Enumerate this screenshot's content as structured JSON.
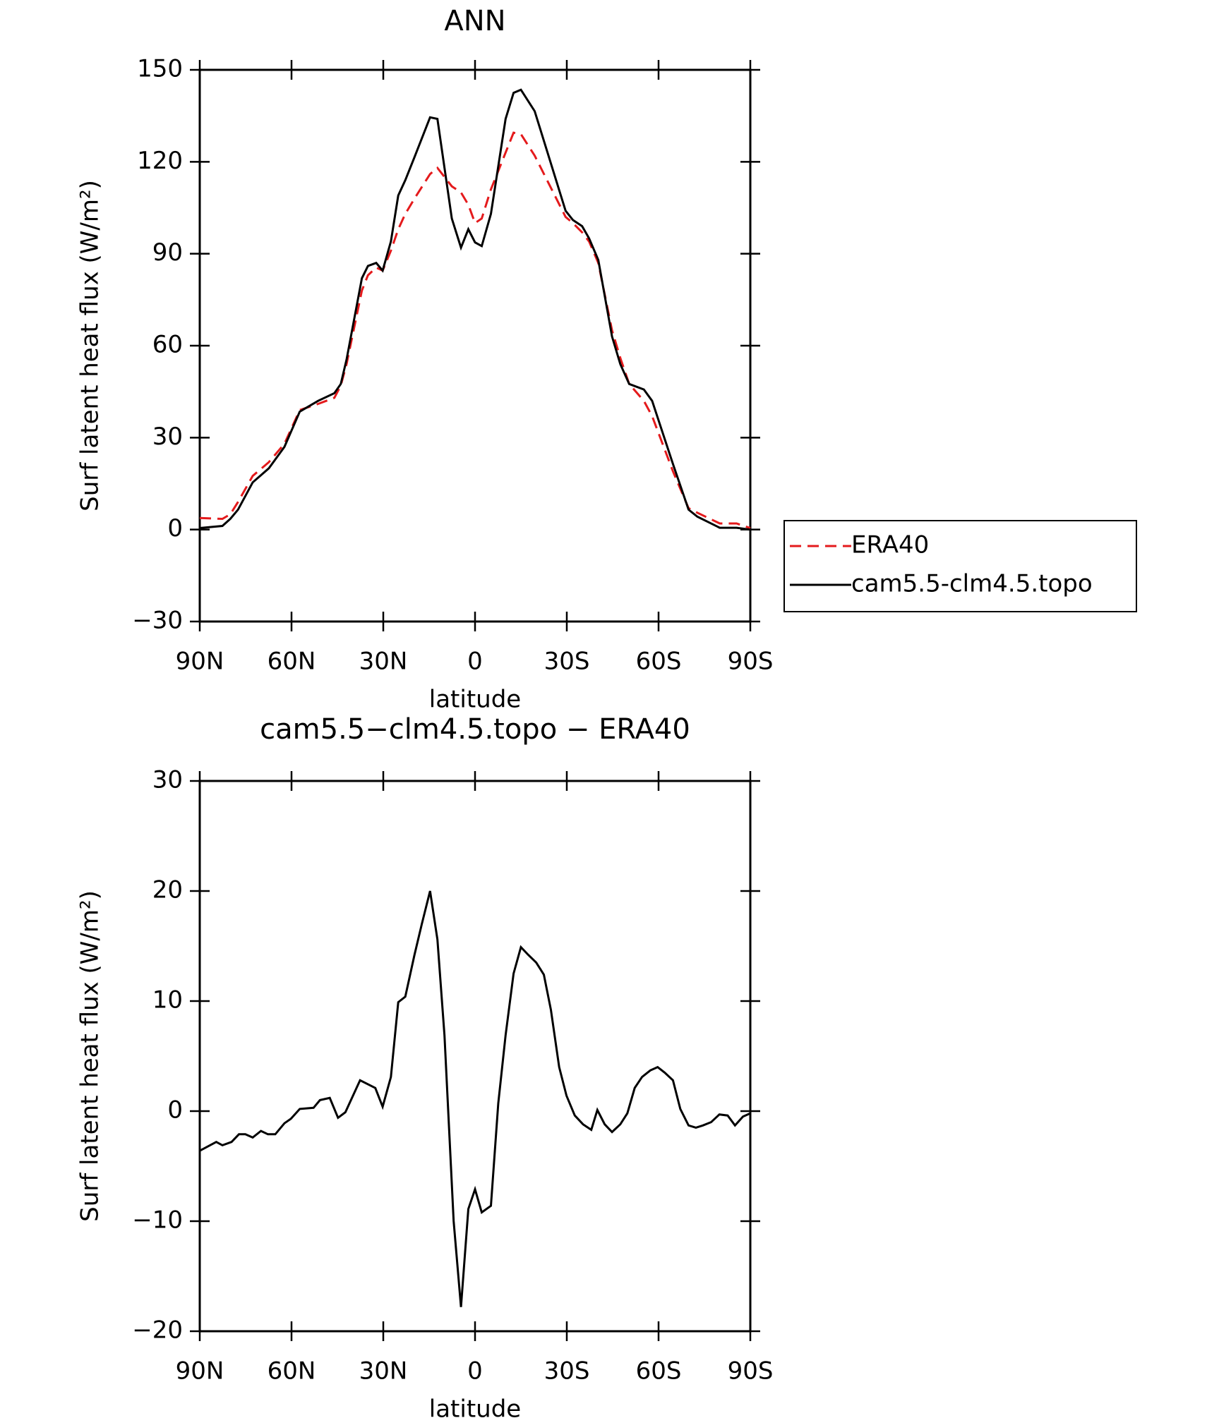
{
  "chart_data": [
    {
      "type": "line",
      "title": "ANN",
      "xlabel": "latitude",
      "ylabel": "Surf latent heat flux (W/m²)",
      "x": [
        90,
        82.6,
        80,
        77.5,
        72.7,
        67.4,
        62.3,
        57.3,
        51.3,
        46,
        43.9,
        42,
        37,
        35,
        32.3,
        30.2,
        27.5,
        25.1,
        22.8,
        19.8,
        14.7,
        12.3,
        7.6,
        4.6,
        2.2,
        0,
        -2.2,
        -5.2,
        -10,
        -12.6,
        -15,
        -19.5,
        -29.6,
        -32,
        -35,
        -37.3,
        -40.3,
        -44.8,
        -47.5,
        -50.4,
        -55.2,
        -57.9,
        -64.7,
        -69.8,
        -72.7,
        -80,
        -85.5,
        -90
      ],
      "series": [
        {
          "name": "ERA40",
          "color": "#e41a1c",
          "style": "dashed",
          "values": [
            3.8,
            3.5,
            5,
            9,
            17.5,
            22,
            28,
            39,
            41,
            43,
            47,
            54,
            78,
            83,
            85.5,
            84.5,
            91,
            98,
            103,
            108,
            116,
            118,
            112,
            110,
            106,
            100,
            101.5,
            111,
            123,
            129.5,
            129,
            122,
            102,
            100,
            97,
            94,
            87,
            65,
            56,
            47.5,
            42,
            37,
            19,
            7,
            5.5,
            2,
            2,
            0.5
          ]
        },
        {
          "name": "cam5.5-clm4.5.topo",
          "color": "#000000",
          "style": "solid",
          "values": [
            0.5,
            1.2,
            3.5,
            6.5,
            15.4,
            20,
            27,
            38.5,
            42,
            44.5,
            47.5,
            55.5,
            82,
            86,
            87,
            84.5,
            94,
            109,
            114,
            121.5,
            134.5,
            134,
            101.5,
            92,
            98,
            93.7,
            92.5,
            103,
            134,
            142.5,
            143.5,
            136.5,
            104,
            101,
            99,
            95,
            88,
            63,
            54,
            47.5,
            45.7,
            42,
            21.4,
            6.5,
            4.2,
            0.6,
            0.6,
            0
          ]
        }
      ],
      "xlim": [
        90,
        -90
      ],
      "ylim": [
        -30,
        150
      ],
      "xticks": [
        {
          "value": 90,
          "label": "90N"
        },
        {
          "value": 60,
          "label": "60N"
        },
        {
          "value": 30,
          "label": "30N"
        },
        0,
        {
          "value": -30,
          "label": "30S"
        },
        {
          "value": -60,
          "label": "60S"
        },
        {
          "value": -90,
          "label": "90S"
        }
      ],
      "yticks": [
        {
          "value": -30,
          "label": "−30"
        },
        0,
        30,
        60,
        90,
        120,
        150
      ],
      "legend": "right"
    },
    {
      "type": "line",
      "title": "cam5.5−clm4.5.topo  −  ERA40",
      "xlabel": "latitude",
      "ylabel": "Surf latent heat flux (W/m²)",
      "x": [
        90,
        84.6,
        82.6,
        79.6,
        77.2,
        75.1,
        72.7,
        70,
        67.7,
        65.3,
        62.3,
        60.2,
        57.3,
        52.8,
        50.7,
        47.5,
        44.8,
        42.4,
        37.6,
        32.6,
        30.2,
        27.5,
        25.1,
        22.8,
        19.8,
        17.4,
        14.7,
        12.3,
        10,
        7,
        4.6,
        2.2,
        0,
        -2.2,
        -5.2,
        -7.6,
        -10,
        -12.6,
        -15,
        -17.4,
        -20,
        -22.5,
        -24.8,
        -27.5,
        -29.9,
        -32.6,
        -35.3,
        -38,
        -40,
        -42.4,
        -44.8,
        -47.5,
        -49.8,
        -52.2,
        -54.6,
        -57.3,
        -59.7,
        -62,
        -64.7,
        -67.1,
        -69.8,
        -72.2,
        -74.5,
        -77.2,
        -79.9,
        -82.6,
        -85,
        -87.6,
        -90
      ],
      "series": [
        {
          "color": "#000000",
          "style": "solid",
          "values": [
            -3.6,
            -2.8,
            -3.1,
            -2.8,
            -2.1,
            -2.1,
            -2.4,
            -1.8,
            -2.1,
            -2.1,
            -1.1,
            -0.7,
            0.2,
            0.3,
            1.0,
            1.2,
            -0.6,
            -0.1,
            2.8,
            2.1,
            0.4,
            3.1,
            9.9,
            10.4,
            14.2,
            17,
            20,
            15.6,
            6.9,
            -10,
            -17.8,
            -8.9,
            -7.1,
            -9.2,
            -8.6,
            0.7,
            6.9,
            12.5,
            14.9,
            14.2,
            13.5,
            12.4,
            9.2,
            4,
            1.4,
            -0.4,
            -1.2,
            -1.7,
            0.1,
            -1.2,
            -1.9,
            -1.2,
            -0.2,
            2.1,
            3.1,
            3.7,
            4,
            3.5,
            2.8,
            0.2,
            -1.3,
            -1.5,
            -1.3,
            -1,
            -0.3,
            -0.4,
            -1.3,
            -0.5,
            -0.2
          ]
        }
      ],
      "xlim": [
        90,
        -90
      ],
      "ylim": [
        -20,
        30
      ],
      "xticks": [
        {
          "value": 90,
          "label": "90N"
        },
        {
          "value": 60,
          "label": "60N"
        },
        {
          "value": 30,
          "label": "30N"
        },
        0,
        {
          "value": -30,
          "label": "30S"
        },
        {
          "value": -60,
          "label": "60S"
        },
        {
          "value": -90,
          "label": "90S"
        }
      ],
      "yticks": [
        {
          "value": -20,
          "label": "−20"
        },
        {
          "value": -10,
          "label": "−10"
        },
        0,
        10,
        20,
        30
      ]
    }
  ]
}
